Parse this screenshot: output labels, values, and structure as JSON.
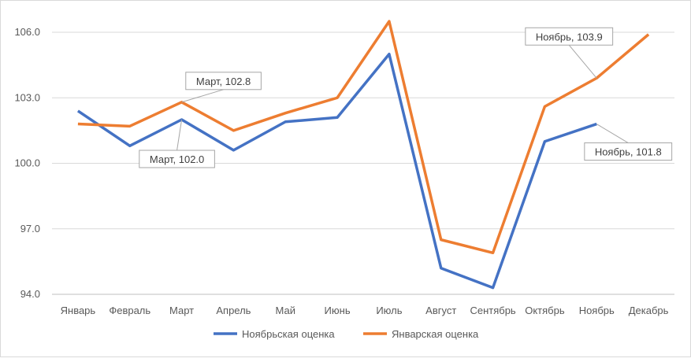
{
  "chart_data": {
    "type": "line",
    "title": "",
    "xlabel": "",
    "ylabel": "",
    "categories": [
      "Январь",
      "Февраль",
      "Март",
      "Апрель",
      "Май",
      "Июнь",
      "Июль",
      "Август",
      "Сентябрь",
      "Октябрь",
      "Ноябрь",
      "Декабрь"
    ],
    "ylim": [
      94.0,
      106.0
    ],
    "yticks": [
      "94.0",
      "97.0",
      "100.0",
      "103.0",
      "106.0"
    ],
    "grid": true,
    "legend_position": "bottom",
    "series": [
      {
        "name": "Ноябрьская оценка",
        "color": "#4472c4",
        "values": [
          102.4,
          100.8,
          102.0,
          100.6,
          101.9,
          102.1,
          105.0,
          95.2,
          94.3,
          101.0,
          101.8,
          null
        ]
      },
      {
        "name": "Январская оценка",
        "color": "#ed7d31",
        "values": [
          101.8,
          101.7,
          102.8,
          101.5,
          102.3,
          103.0,
          106.5,
          96.5,
          95.9,
          102.6,
          103.9,
          105.9
        ]
      }
    ],
    "annotations": [
      {
        "series": 1,
        "index": 2,
        "text": "Март, 102.8"
      },
      {
        "series": 0,
        "index": 2,
        "text": "Март, 102.0"
      },
      {
        "series": 1,
        "index": 10,
        "text": "Ноябрь, 103.9"
      },
      {
        "series": 0,
        "index": 10,
        "text": "Ноябрь, 101.8"
      }
    ]
  }
}
